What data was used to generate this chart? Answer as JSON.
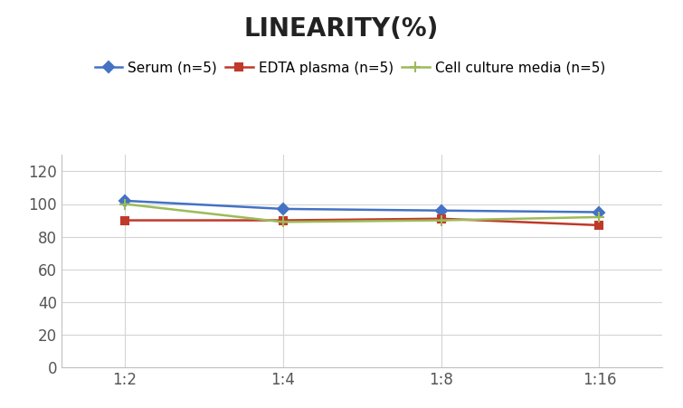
{
  "title": "LINEARITY(%)",
  "title_fontsize": 20,
  "title_fontweight": "bold",
  "x_labels": [
    "1:2",
    "1:4",
    "1:8",
    "1:16"
  ],
  "x_values": [
    0,
    1,
    2,
    3
  ],
  "series": [
    {
      "label": "Serum (n=5)",
      "values": [
        102,
        97,
        96,
        95
      ],
      "color": "#4472C4",
      "marker": "D",
      "marker_size": 6,
      "linewidth": 1.8
    },
    {
      "label": "EDTA plasma (n=5)",
      "values": [
        90,
        90,
        91,
        87
      ],
      "color": "#C0392B",
      "marker": "s",
      "marker_size": 6,
      "linewidth": 1.8
    },
    {
      "label": "Cell culture media (n=5)",
      "values": [
        100,
        89,
        90,
        92
      ],
      "color": "#9BBB59",
      "marker": "+",
      "marker_size": 9,
      "linewidth": 1.8
    }
  ],
  "ylim": [
    0,
    130
  ],
  "yticks": [
    0,
    20,
    40,
    60,
    80,
    100,
    120
  ],
  "background_color": "#ffffff",
  "grid_color": "#d4d4d4",
  "legend_fontsize": 11,
  "axis_tick_color": "#555555",
  "figure_width": 7.55,
  "figure_height": 4.51,
  "dpi": 100
}
